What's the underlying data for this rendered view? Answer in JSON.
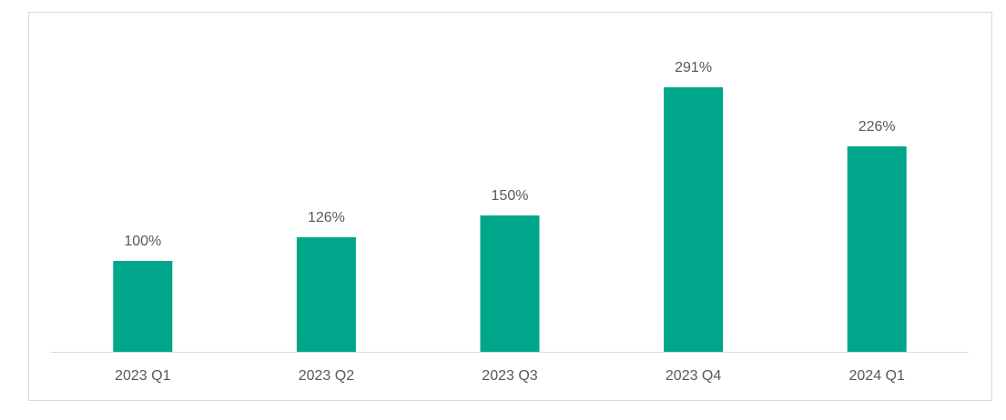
{
  "chart_data": {
    "type": "bar",
    "categories": [
      "2023 Q1",
      "2023 Q2",
      "2023 Q3",
      "2023 Q4",
      "2024 Q1"
    ],
    "values": [
      100,
      126,
      150,
      291,
      226
    ],
    "value_labels": [
      "100%",
      "126%",
      "150%",
      "291%",
      "226%"
    ],
    "color": "#00a68a"
  }
}
